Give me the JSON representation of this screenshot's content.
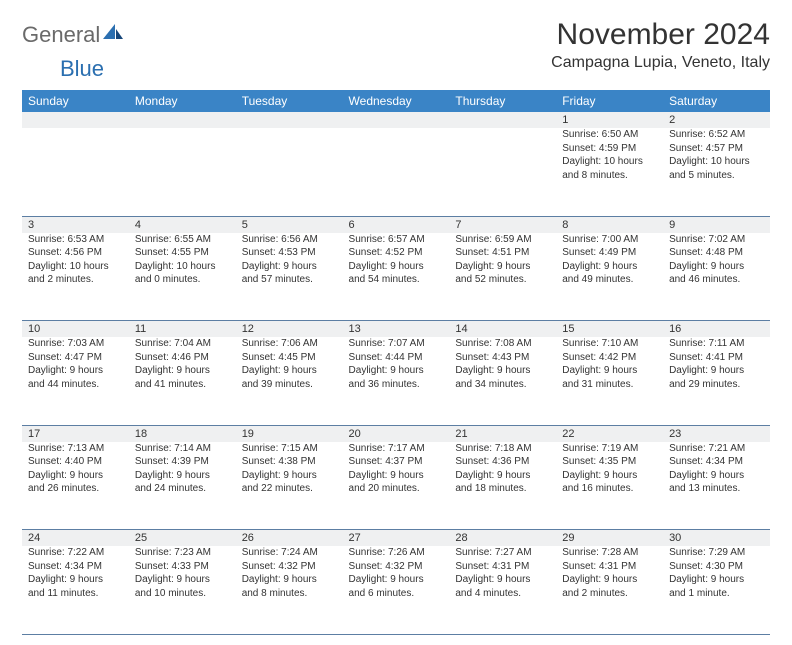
{
  "logo": {
    "partA": "General",
    "partB": "Blue"
  },
  "title": "November 2024",
  "location": "Campagna Lupia, Veneto, Italy",
  "colors": {
    "header_bg": "#3a84c6",
    "header_fg": "#ffffff",
    "daynum_bg": "#eff0f1",
    "rule": "#5c7ea3",
    "text": "#333333",
    "logo_gray": "#6a6a6a",
    "logo_blue": "#2b6fb0"
  },
  "day_headers": [
    "Sunday",
    "Monday",
    "Tuesday",
    "Wednesday",
    "Thursday",
    "Friday",
    "Saturday"
  ],
  "weeks": [
    [
      null,
      null,
      null,
      null,
      null,
      {
        "n": "1",
        "sr": "Sunrise: 6:50 AM",
        "ss": "Sunset: 4:59 PM",
        "d1": "Daylight: 10 hours",
        "d2": "and 8 minutes."
      },
      {
        "n": "2",
        "sr": "Sunrise: 6:52 AM",
        "ss": "Sunset: 4:57 PM",
        "d1": "Daylight: 10 hours",
        "d2": "and 5 minutes."
      }
    ],
    [
      {
        "n": "3",
        "sr": "Sunrise: 6:53 AM",
        "ss": "Sunset: 4:56 PM",
        "d1": "Daylight: 10 hours",
        "d2": "and 2 minutes."
      },
      {
        "n": "4",
        "sr": "Sunrise: 6:55 AM",
        "ss": "Sunset: 4:55 PM",
        "d1": "Daylight: 10 hours",
        "d2": "and 0 minutes."
      },
      {
        "n": "5",
        "sr": "Sunrise: 6:56 AM",
        "ss": "Sunset: 4:53 PM",
        "d1": "Daylight: 9 hours",
        "d2": "and 57 minutes."
      },
      {
        "n": "6",
        "sr": "Sunrise: 6:57 AM",
        "ss": "Sunset: 4:52 PM",
        "d1": "Daylight: 9 hours",
        "d2": "and 54 minutes."
      },
      {
        "n": "7",
        "sr": "Sunrise: 6:59 AM",
        "ss": "Sunset: 4:51 PM",
        "d1": "Daylight: 9 hours",
        "d2": "and 52 minutes."
      },
      {
        "n": "8",
        "sr": "Sunrise: 7:00 AM",
        "ss": "Sunset: 4:49 PM",
        "d1": "Daylight: 9 hours",
        "d2": "and 49 minutes."
      },
      {
        "n": "9",
        "sr": "Sunrise: 7:02 AM",
        "ss": "Sunset: 4:48 PM",
        "d1": "Daylight: 9 hours",
        "d2": "and 46 minutes."
      }
    ],
    [
      {
        "n": "10",
        "sr": "Sunrise: 7:03 AM",
        "ss": "Sunset: 4:47 PM",
        "d1": "Daylight: 9 hours",
        "d2": "and 44 minutes."
      },
      {
        "n": "11",
        "sr": "Sunrise: 7:04 AM",
        "ss": "Sunset: 4:46 PM",
        "d1": "Daylight: 9 hours",
        "d2": "and 41 minutes."
      },
      {
        "n": "12",
        "sr": "Sunrise: 7:06 AM",
        "ss": "Sunset: 4:45 PM",
        "d1": "Daylight: 9 hours",
        "d2": "and 39 minutes."
      },
      {
        "n": "13",
        "sr": "Sunrise: 7:07 AM",
        "ss": "Sunset: 4:44 PM",
        "d1": "Daylight: 9 hours",
        "d2": "and 36 minutes."
      },
      {
        "n": "14",
        "sr": "Sunrise: 7:08 AM",
        "ss": "Sunset: 4:43 PM",
        "d1": "Daylight: 9 hours",
        "d2": "and 34 minutes."
      },
      {
        "n": "15",
        "sr": "Sunrise: 7:10 AM",
        "ss": "Sunset: 4:42 PM",
        "d1": "Daylight: 9 hours",
        "d2": "and 31 minutes."
      },
      {
        "n": "16",
        "sr": "Sunrise: 7:11 AM",
        "ss": "Sunset: 4:41 PM",
        "d1": "Daylight: 9 hours",
        "d2": "and 29 minutes."
      }
    ],
    [
      {
        "n": "17",
        "sr": "Sunrise: 7:13 AM",
        "ss": "Sunset: 4:40 PM",
        "d1": "Daylight: 9 hours",
        "d2": "and 26 minutes."
      },
      {
        "n": "18",
        "sr": "Sunrise: 7:14 AM",
        "ss": "Sunset: 4:39 PM",
        "d1": "Daylight: 9 hours",
        "d2": "and 24 minutes."
      },
      {
        "n": "19",
        "sr": "Sunrise: 7:15 AM",
        "ss": "Sunset: 4:38 PM",
        "d1": "Daylight: 9 hours",
        "d2": "and 22 minutes."
      },
      {
        "n": "20",
        "sr": "Sunrise: 7:17 AM",
        "ss": "Sunset: 4:37 PM",
        "d1": "Daylight: 9 hours",
        "d2": "and 20 minutes."
      },
      {
        "n": "21",
        "sr": "Sunrise: 7:18 AM",
        "ss": "Sunset: 4:36 PM",
        "d1": "Daylight: 9 hours",
        "d2": "and 18 minutes."
      },
      {
        "n": "22",
        "sr": "Sunrise: 7:19 AM",
        "ss": "Sunset: 4:35 PM",
        "d1": "Daylight: 9 hours",
        "d2": "and 16 minutes."
      },
      {
        "n": "23",
        "sr": "Sunrise: 7:21 AM",
        "ss": "Sunset: 4:34 PM",
        "d1": "Daylight: 9 hours",
        "d2": "and 13 minutes."
      }
    ],
    [
      {
        "n": "24",
        "sr": "Sunrise: 7:22 AM",
        "ss": "Sunset: 4:34 PM",
        "d1": "Daylight: 9 hours",
        "d2": "and 11 minutes."
      },
      {
        "n": "25",
        "sr": "Sunrise: 7:23 AM",
        "ss": "Sunset: 4:33 PM",
        "d1": "Daylight: 9 hours",
        "d2": "and 10 minutes."
      },
      {
        "n": "26",
        "sr": "Sunrise: 7:24 AM",
        "ss": "Sunset: 4:32 PM",
        "d1": "Daylight: 9 hours",
        "d2": "and 8 minutes."
      },
      {
        "n": "27",
        "sr": "Sunrise: 7:26 AM",
        "ss": "Sunset: 4:32 PM",
        "d1": "Daylight: 9 hours",
        "d2": "and 6 minutes."
      },
      {
        "n": "28",
        "sr": "Sunrise: 7:27 AM",
        "ss": "Sunset: 4:31 PM",
        "d1": "Daylight: 9 hours",
        "d2": "and 4 minutes."
      },
      {
        "n": "29",
        "sr": "Sunrise: 7:28 AM",
        "ss": "Sunset: 4:31 PM",
        "d1": "Daylight: 9 hours",
        "d2": "and 2 minutes."
      },
      {
        "n": "30",
        "sr": "Sunrise: 7:29 AM",
        "ss": "Sunset: 4:30 PM",
        "d1": "Daylight: 9 hours",
        "d2": "and 1 minute."
      }
    ]
  ]
}
